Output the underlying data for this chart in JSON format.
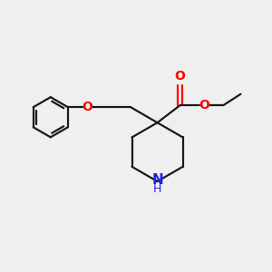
{
  "bg_color": "#efefef",
  "bond_color": "#1a1a1a",
  "O_color": "#ff0000",
  "N_color": "#2020ff",
  "line_width": 1.6,
  "font_size_atom": 10,
  "xlim": [
    0,
    10
  ],
  "ylim": [
    0,
    10
  ]
}
